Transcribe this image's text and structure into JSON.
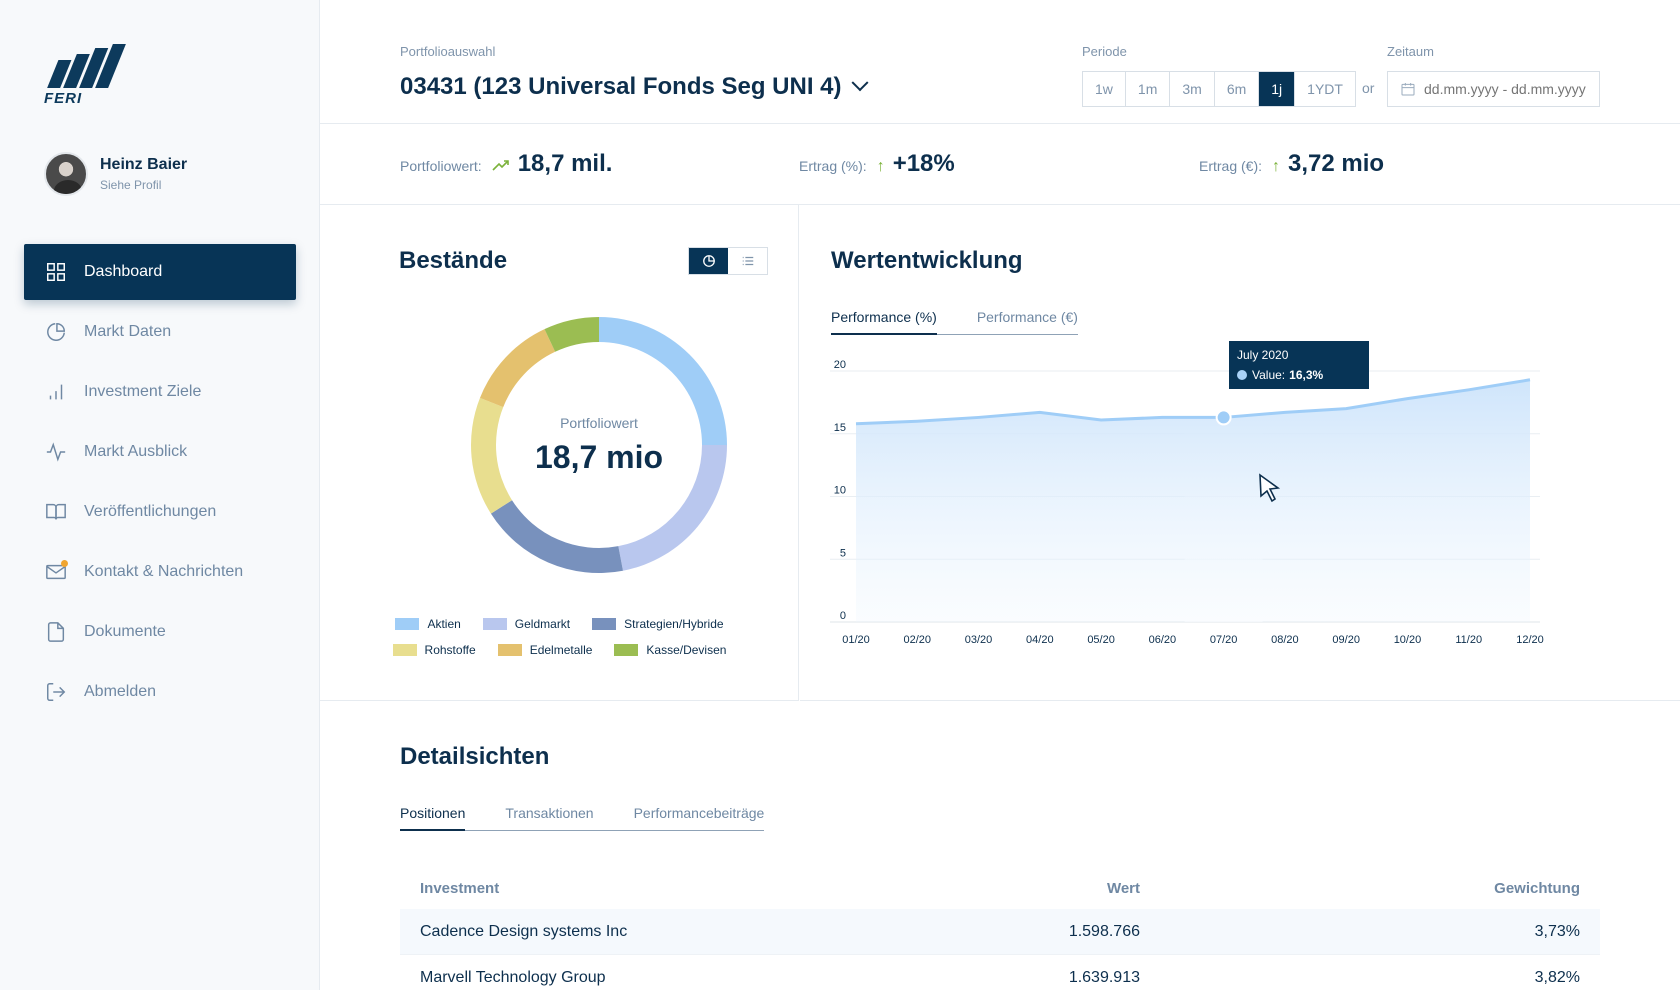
{
  "brand": {
    "name": "FERI",
    "color": "#073456"
  },
  "user": {
    "name": "Heinz Baier",
    "profile_link": "Siehe Profil"
  },
  "nav": [
    {
      "label": "Dashboard",
      "icon": "dashboard-grid-icon",
      "active": true
    },
    {
      "label": "Markt Daten",
      "icon": "pie-chart-icon"
    },
    {
      "label": "Investment Ziele",
      "icon": "bar-chart-icon"
    },
    {
      "label": "Markt Ausblick",
      "icon": "activity-icon"
    },
    {
      "label": "Veröffentlichungen",
      "icon": "book-icon"
    },
    {
      "label": "Kontakt & Nachrichten",
      "icon": "mail-icon",
      "badge": true
    },
    {
      "label": "Dokumente",
      "icon": "document-icon"
    },
    {
      "label": "Abmelden",
      "icon": "logout-icon"
    }
  ],
  "header": {
    "portfolio_label": "Portfolioauswahl",
    "portfolio_value": "03431 (123 Universal Fonds Seg UNI 4)",
    "periode_label": "Periode",
    "periods": [
      "1w",
      "1m",
      "3m",
      "6m",
      "1j",
      "1YDT"
    ],
    "active_period": "1j",
    "or_label": "or",
    "zeitraum_label": "Zeitaum",
    "date_placeholder": "dd.mm.yyyy - dd.mm.yyyy"
  },
  "kpis": {
    "portfoliowert_label": "Portfoliowert:",
    "portfoliowert_value": "18,7 mil.",
    "ertrag_pct_label": "Ertrag (%):",
    "ertrag_pct_value": "+18%",
    "ertrag_eur_label": "Ertrag (€):",
    "ertrag_eur_value": "3,72 mio"
  },
  "bestaende": {
    "title": "Bestände",
    "center_label": "Portfoliowert",
    "center_value": "18,7 mio",
    "legend": [
      {
        "name": "Aktien",
        "color": "#9fcdf7"
      },
      {
        "name": "Geldmarkt",
        "color": "#b9c7ee"
      },
      {
        "name": "Strategien/Hybride",
        "color": "#7891bd"
      },
      {
        "name": "Rohstoffe",
        "color": "#e8de8f"
      },
      {
        "name": "Edelmetalle",
        "color": "#e4c16e"
      },
      {
        "name": "Kasse/Devisen",
        "color": "#9bbd52"
      }
    ]
  },
  "chart_data": [
    {
      "type": "pie",
      "categories": [
        "Aktien",
        "Geldmarkt",
        "Strategien/Hybride",
        "Rohstoffe",
        "Edelmetalle",
        "Kasse/Devisen"
      ],
      "values": [
        25,
        22,
        19,
        15,
        12,
        7
      ],
      "colors": [
        "#9fcdf7",
        "#b9c7ee",
        "#7891bd",
        "#e8de8f",
        "#e4c16e",
        "#9bbd52"
      ],
      "legend": "bottom"
    },
    {
      "type": "area",
      "title": "Wertentwicklung",
      "x": [
        "01/20",
        "02/20",
        "03/20",
        "04/20",
        "05/20",
        "06/20",
        "07/20",
        "08/20",
        "09/20",
        "10/20",
        "11/20",
        "12/20"
      ],
      "series": [
        {
          "values": [
            15.8,
            16.0,
            16.3,
            16.7,
            16.1,
            16.3,
            16.3,
            16.7,
            17.0,
            17.8,
            18.5,
            19.3
          ]
        }
      ],
      "ylim": [
        0,
        20
      ],
      "yticks": [
        0,
        5,
        10,
        15,
        20
      ],
      "grid": true,
      "color": "#9fcdf7",
      "highlight_index": 6,
      "tooltip": {
        "title": "July 2020",
        "label": "Value:",
        "value": "16,3%"
      }
    }
  ],
  "wert": {
    "title": "Wertentwicklung",
    "tabs": [
      "Performance (%)",
      "Performance (€)"
    ],
    "tooltip_title": "July 2020",
    "tooltip_label": "Value:",
    "tooltip_value": "16,3%"
  },
  "detail": {
    "title": "Detailsichten",
    "tabs": [
      "Positionen",
      "Transaktionen",
      "Performancebeiträge"
    ],
    "columns": [
      "Investment",
      "Wert",
      "Gewichtung"
    ],
    "rows": [
      [
        "Cadence Design systems Inc",
        "1.598.766",
        "3,73%"
      ],
      [
        "Marvell Technology Group",
        "1.639.913",
        "3,82%"
      ]
    ]
  }
}
